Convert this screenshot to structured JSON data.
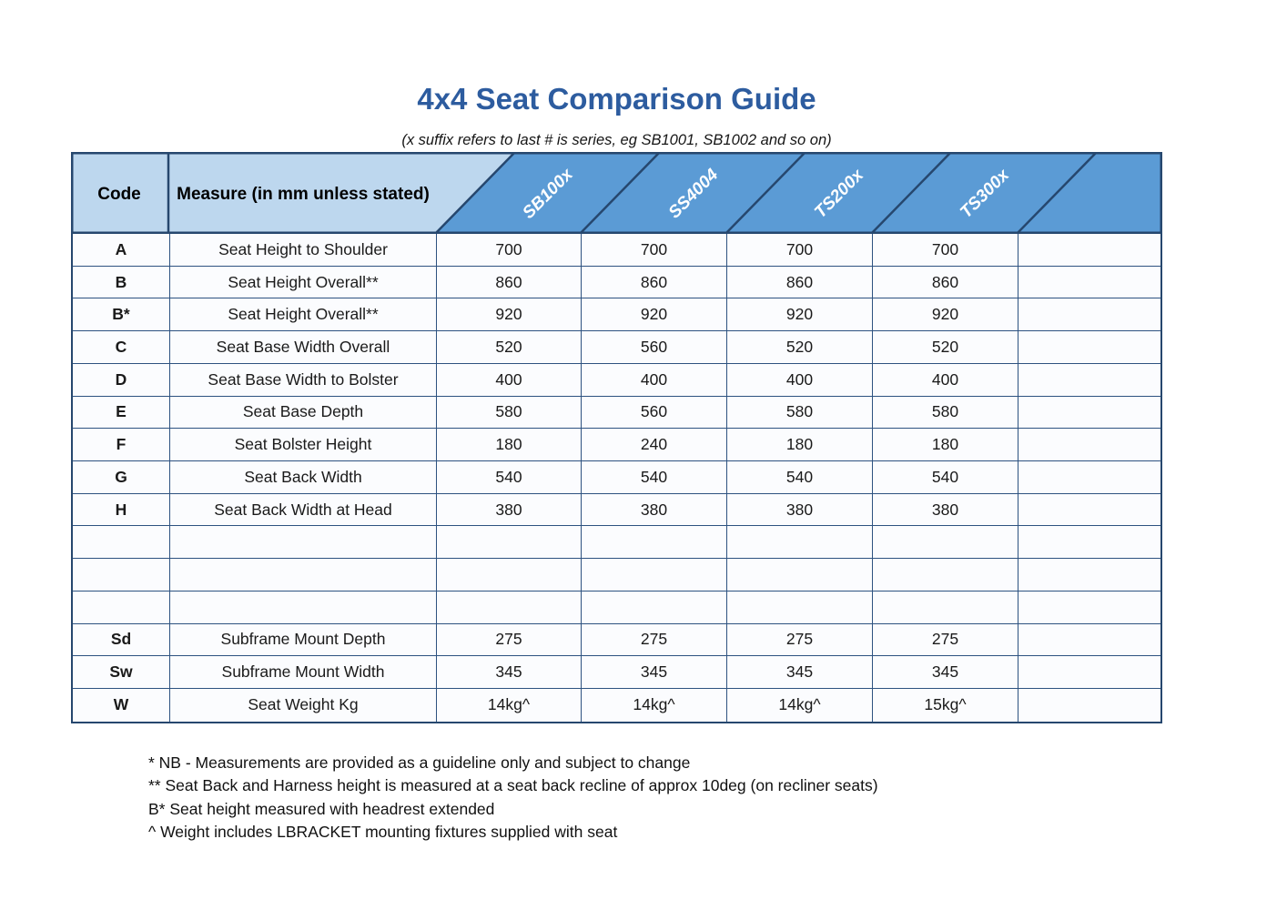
{
  "title": "4x4 Seat Comparison Guide",
  "subtitle": "(x suffix refers to last # is series, eg SB1001, SB1002 and so on)",
  "colors": {
    "header_band": "#5b9bd5",
    "header_light": "#bdd7ee",
    "border_dark": "#26476e",
    "border_inner": "#2d5280",
    "cell_background": "#fbfcfe",
    "title": "#2d5c9f"
  },
  "table": {
    "code_header": "Code",
    "measure_header": "Measure (in mm unless stated)",
    "products": [
      "SB100x",
      "SS4004",
      "TS200x",
      "TS300x",
      ""
    ],
    "rows": [
      {
        "code": "A",
        "measure": "Seat Height to Shoulder",
        "values": [
          "700",
          "700",
          "700",
          "700",
          ""
        ]
      },
      {
        "code": "B",
        "measure": "Seat Height Overall**",
        "values": [
          "860",
          "860",
          "860",
          "860",
          ""
        ]
      },
      {
        "code": "B*",
        "measure": "Seat Height Overall**",
        "values": [
          "920",
          "920",
          "920",
          "920",
          ""
        ]
      },
      {
        "code": "C",
        "measure": "Seat Base Width Overall",
        "values": [
          "520",
          "560",
          "520",
          "520",
          ""
        ]
      },
      {
        "code": "D",
        "measure": "Seat Base Width to Bolster",
        "values": [
          "400",
          "400",
          "400",
          "400",
          ""
        ]
      },
      {
        "code": "E",
        "measure": "Seat Base Depth",
        "values": [
          "580",
          "560",
          "580",
          "580",
          ""
        ]
      },
      {
        "code": "F",
        "measure": "Seat Bolster Height",
        "values": [
          "180",
          "240",
          "180",
          "180",
          ""
        ]
      },
      {
        "code": "G",
        "measure": "Seat Back Width",
        "values": [
          "540",
          "540",
          "540",
          "540",
          ""
        ]
      },
      {
        "code": "H",
        "measure": "Seat Back Width at Head",
        "values": [
          "380",
          "380",
          "380",
          "380",
          ""
        ]
      },
      {
        "code": "",
        "measure": "",
        "values": [
          "",
          "",
          "",
          "",
          ""
        ]
      },
      {
        "code": "",
        "measure": "",
        "values": [
          "",
          "",
          "",
          "",
          ""
        ]
      },
      {
        "code": "",
        "measure": "",
        "values": [
          "",
          "",
          "",
          "",
          ""
        ]
      },
      {
        "code": "Sd",
        "measure": "Subframe Mount Depth",
        "values": [
          "275",
          "275",
          "275",
          "275",
          ""
        ]
      },
      {
        "code": "Sw",
        "measure": "Subframe Mount Width",
        "values": [
          "345",
          "345",
          "345",
          "345",
          ""
        ]
      },
      {
        "code": "W",
        "measure": "Seat Weight Kg",
        "values": [
          "14kg^",
          "14kg^",
          "14kg^",
          "15kg^",
          ""
        ]
      }
    ]
  },
  "footnotes": [
    "* NB - Measurements are provided as a guideline only and subject to change",
    "** Seat Back and Harness height is measured at a seat back recline of approx 10deg (on recliner seats)",
    "B* Seat height measured with headrest extended",
    "^ Weight includes LBRACKET mounting fixtures supplied with seat"
  ]
}
